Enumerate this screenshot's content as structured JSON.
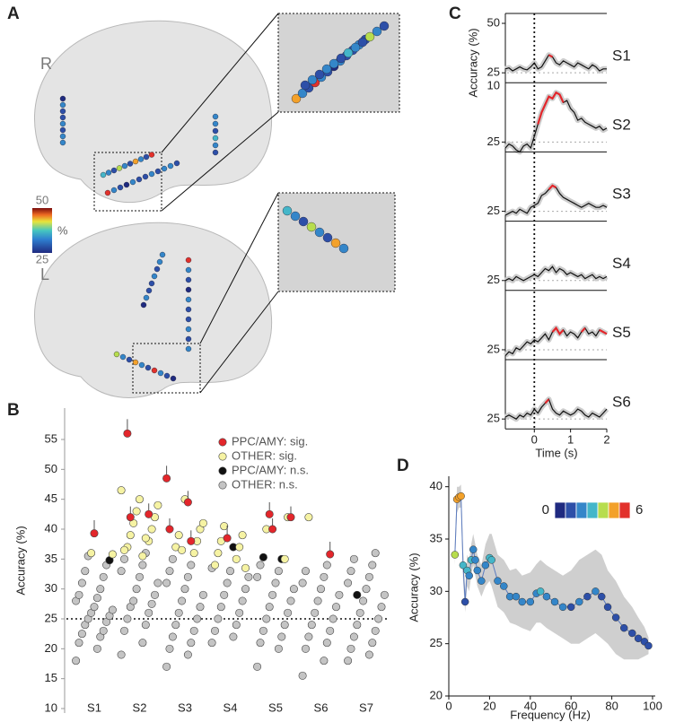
{
  "panel_a": {
    "label": "A",
    "hemispheres": [
      "R",
      "L"
    ],
    "colorbar": {
      "clim": [
        25,
        50
      ],
      "ticks": [
        50,
        25
      ],
      "unit": "%"
    }
  },
  "chart_data": [
    {
      "type": "strip",
      "panel_label": "B",
      "ylabel": "Accuracy (%)",
      "categories": [
        "S1",
        "S2",
        "S3",
        "S4",
        "S5",
        "S6",
        "S7"
      ],
      "ylim": [
        10,
        58
      ],
      "yticks": [
        10,
        15,
        20,
        25,
        30,
        35,
        40,
        45,
        50,
        55
      ],
      "chance": 25,
      "legend": "top-right",
      "series": [
        {
          "name": "PPC/AMY: sig.",
          "color": "#e3262b",
          "values": [
            [
              39.3
            ],
            [
              56,
              42.5,
              42
            ],
            [
              48.5,
              44.5,
              40,
              38
            ],
            [
              38.5
            ],
            [
              42.5,
              42,
              40
            ],
            [
              35.8
            ],
            []
          ],
          "errors": [
            [
              1.6
            ],
            [
              1.8,
              1.2,
              1.2
            ],
            [
              1.5,
              1.3,
              1.2,
              1.2
            ],
            [
              1.5
            ],
            [
              1.4,
              1.2,
              1.2
            ],
            [
              1.5
            ],
            []
          ]
        },
        {
          "name": "OTHER: sig.",
          "color": "#f6f3a3",
          "values": [
            [
              36,
              35.8
            ],
            [
              37,
              38,
              39,
              40,
              41,
              42,
              43,
              44,
              45,
              46.5,
              35.5,
              36.5,
              38.5
            ],
            [
              36,
              37,
              38,
              39,
              40,
              36.5,
              41,
              45
            ],
            [
              34,
              35,
              36,
              37,
              38,
              39,
              40.5,
              33.5
            ],
            [
              35,
              40,
              42
            ],
            [
              42
            ],
            []
          ]
        },
        {
          "name": "PPC/AMY: n.s.",
          "color": "#111111",
          "values": [
            [
              34.8
            ],
            [],
            [],
            [
              37
            ],
            [
              35,
              35.3
            ],
            [],
            [
              29
            ]
          ]
        },
        {
          "name": "OTHER: n.s.",
          "color": "#c4c4c4",
          "values": [
            [
              18,
              20,
              21,
              22,
              22.5,
              23,
              24,
              24.5,
              25,
              25.5,
              26,
              26.5,
              27,
              28,
              28.5,
              29,
              30,
              31,
              32,
              33,
              34,
              35.5
            ],
            [
              19,
              21,
              23,
              24,
              25,
              26,
              27,
              27.5,
              28,
              29,
              30,
              31,
              32,
              33,
              34,
              35,
              36
            ],
            [
              17,
              19,
              20,
              21,
              22,
              23,
              24,
              25,
              26,
              27,
              28,
              29,
              30,
              31,
              32,
              33,
              34,
              35
            ],
            [
              21,
              22,
              23,
              24,
              25,
              26,
              27,
              28,
              29,
              30,
              31,
              32,
              33,
              33.5
            ],
            [
              17,
              20,
              21,
              22,
              23,
              24,
              25,
              26,
              27,
              28,
              29,
              30,
              31,
              32,
              33,
              34
            ],
            [
              15.5,
              18,
              20,
              21,
              22,
              23,
              24,
              25,
              26,
              27,
              28,
              29,
              30,
              31,
              32,
              33,
              34
            ],
            [
              18,
              19,
              20,
              21,
              22,
              23,
              24,
              25,
              26,
              27,
              28,
              29,
              30,
              31,
              32,
              33,
              34,
              35,
              36
            ]
          ]
        }
      ]
    },
    {
      "type": "line",
      "panel_label": "C",
      "ylabel": "Accuracy (%)",
      "xlabel": "Time (s)",
      "x": [
        -0.8,
        -0.7,
        -0.6,
        -0.5,
        -0.4,
        -0.3,
        -0.2,
        -0.1,
        0,
        0.1,
        0.2,
        0.3,
        0.4,
        0.5,
        0.6,
        0.7,
        0.8,
        0.9,
        1,
        1.1,
        1.2,
        1.3,
        1.4,
        1.5,
        1.6,
        1.7,
        1.8,
        1.9,
        2
      ],
      "xlim": [
        -0.8,
        2
      ],
      "xticks": [
        0,
        1,
        2
      ],
      "ylim": [
        20,
        55
      ],
      "chance": 25,
      "event_x": 0,
      "color": "#111111",
      "sig_color": "#e3262b",
      "panels": [
        {
          "name": "S1",
          "yticks": [
            25,
            50
          ],
          "values": [
            27,
            27.5,
            26,
            27,
            28,
            27,
            26.5,
            28,
            30,
            27,
            28,
            31,
            34,
            33,
            30,
            29,
            31,
            30,
            29,
            28,
            30,
            29,
            28,
            27,
            29,
            28,
            26,
            27,
            27
          ],
          "sig": [
            null,
            null,
            null,
            null,
            null,
            null,
            null,
            null,
            null,
            null,
            null,
            null,
            34,
            33,
            null,
            null,
            null,
            null,
            null,
            null,
            null,
            null,
            null,
            null,
            null,
            null,
            null,
            null,
            null
          ]
        },
        {
          "name": "S2",
          "yticks": [
            25
          ],
          "annotation": "10",
          "values": [
            22,
            24,
            23,
            21,
            20,
            23,
            24,
            22,
            28,
            34,
            40,
            44,
            48,
            47,
            50,
            49,
            45,
            46,
            42,
            40,
            36,
            37,
            35,
            34,
            33,
            32,
            33,
            31,
            32
          ],
          "sig": [
            null,
            null,
            null,
            null,
            null,
            null,
            null,
            null,
            null,
            34,
            40,
            44,
            48,
            47,
            50,
            49,
            45,
            null,
            null,
            null,
            null,
            null,
            null,
            null,
            null,
            null,
            null,
            null,
            null
          ]
        },
        {
          "name": "S3",
          "yticks": [
            25
          ],
          "values": [
            23,
            24,
            25,
            24,
            26,
            25,
            24,
            27,
            28,
            29,
            33,
            34,
            36,
            38,
            37,
            34,
            32,
            31,
            30,
            29,
            28,
            27,
            28,
            29,
            28,
            27,
            27,
            28,
            27
          ],
          "sig": [
            null,
            null,
            null,
            null,
            null,
            null,
            null,
            null,
            null,
            null,
            null,
            null,
            36,
            38,
            37,
            null,
            null,
            null,
            null,
            null,
            null,
            null,
            null,
            null,
            null,
            null,
            null,
            null,
            null
          ]
        },
        {
          "name": "S4",
          "yticks": [
            25
          ],
          "values": [
            25,
            26,
            25,
            27,
            26,
            25,
            26,
            27,
            28,
            27,
            29,
            31,
            30,
            32,
            29,
            31,
            30,
            28,
            29,
            28,
            27,
            28,
            26,
            27,
            28,
            26,
            27,
            26,
            27
          ]
        },
        {
          "name": "S5",
          "yticks": [
            25
          ],
          "values": [
            22,
            24,
            23,
            26,
            25,
            27,
            29,
            28,
            30,
            29,
            31,
            33,
            30,
            34,
            36,
            33,
            35,
            32,
            34,
            33,
            31,
            34,
            36,
            33,
            34,
            32,
            35,
            34,
            33
          ],
          "sig": [
            null,
            null,
            null,
            null,
            null,
            null,
            null,
            null,
            null,
            null,
            null,
            null,
            null,
            34,
            36,
            33,
            35,
            null,
            null,
            null,
            null,
            34,
            36,
            null,
            null,
            null,
            35,
            34,
            33
          ]
        },
        {
          "name": "S6",
          "yticks": [
            25
          ],
          "values": [
            26,
            27,
            26,
            25,
            27,
            26,
            28,
            27,
            30,
            28,
            31,
            33,
            35,
            30,
            28,
            27,
            29,
            28,
            27,
            28,
            30,
            29,
            27,
            26,
            28,
            27,
            26,
            28,
            30
          ],
          "sig": [
            null,
            null,
            null,
            null,
            null,
            null,
            null,
            null,
            null,
            null,
            null,
            33,
            35,
            null,
            null,
            null,
            null,
            null,
            null,
            null,
            null,
            null,
            null,
            null,
            null,
            null,
            null,
            null,
            null
          ]
        }
      ]
    },
    {
      "type": "scatter-line",
      "panel_label": "D",
      "ylabel": "Accuracy (%)",
      "xlabel": "Frequency (Hz)",
      "xlim": [
        0,
        100
      ],
      "xticks": [
        0,
        20,
        40,
        60,
        80,
        100
      ],
      "ylim": [
        20,
        41
      ],
      "yticks": [
        20,
        25,
        30,
        35,
        40
      ],
      "line_color": "#5b7bbf",
      "band_color": "#cfcfcf",
      "colorbar": {
        "clim": [
          0,
          6
        ],
        "ticks": [
          0,
          6
        ],
        "colors": [
          "#1f2a80",
          "#2d4fa8",
          "#3486c9",
          "#44b6c9",
          "#b7dd4e",
          "#f3a12a",
          "#e2312b"
        ]
      },
      "x": [
        3,
        4,
        5,
        6,
        7,
        8,
        9,
        10,
        11,
        12,
        13,
        14,
        16,
        18,
        20,
        21,
        24,
        27,
        30,
        33,
        36,
        40,
        43,
        45,
        48,
        52,
        56,
        60,
        64,
        68,
        72,
        75,
        78,
        82,
        86,
        90,
        93,
        96,
        98
      ],
      "values": [
        33.5,
        38.8,
        39,
        39.1,
        32.5,
        29,
        32,
        31.5,
        33,
        34,
        33,
        32,
        31,
        32.5,
        33.2,
        33,
        31,
        30.5,
        29.5,
        29.5,
        29,
        29,
        29.8,
        30,
        29.5,
        29,
        28.5,
        28.5,
        29,
        29.5,
        30,
        29.5,
        28.5,
        27.5,
        26.5,
        26,
        25.5,
        25.2,
        24.8
      ],
      "counts": [
        4,
        5,
        5,
        5,
        3,
        1,
        3,
        2,
        3,
        2,
        2,
        2,
        2,
        2,
        3,
        3,
        2,
        2,
        2,
        2,
        2,
        2,
        2,
        3,
        2,
        2,
        2,
        1,
        2,
        1,
        2,
        1,
        1,
        1,
        1,
        1,
        1,
        1,
        1
      ],
      "band_low": [
        32.5,
        37.5,
        38,
        38,
        31,
        28,
        30.5,
        30,
        31.5,
        32.5,
        31.5,
        30.5,
        29.5,
        30.5,
        31,
        30.5,
        28.5,
        28,
        27,
        26.8,
        26.5,
        26.2,
        27,
        27,
        26.5,
        26,
        25.5,
        25,
        25,
        25.5,
        26,
        25.5,
        25,
        24,
        23.5,
        23.5,
        23.5,
        23.8,
        24
      ],
      "band_high": [
        34.5,
        40,
        40,
        40.2,
        34,
        30,
        33.5,
        33,
        34.5,
        35.5,
        34.5,
        33.5,
        32.5,
        34.5,
        35.5,
        35.5,
        33.5,
        33,
        32,
        32.2,
        31.5,
        31.8,
        32.6,
        33,
        32.5,
        32,
        31.5,
        32,
        33,
        33.5,
        34,
        33.5,
        32,
        31,
        29.5,
        28.5,
        27.5,
        26.6,
        25.6
      ]
    }
  ]
}
